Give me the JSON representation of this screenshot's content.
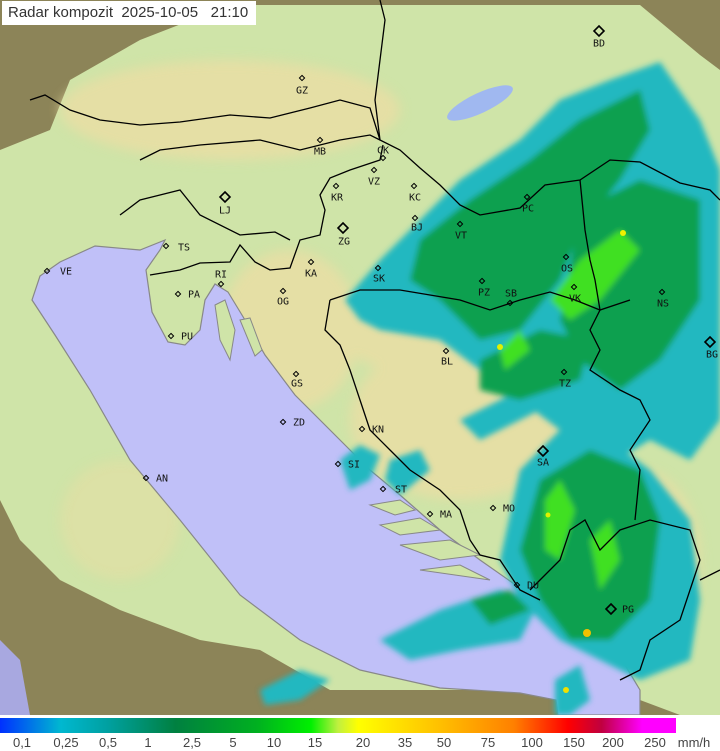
{
  "header": {
    "title": "Radar kompozit",
    "date": "2025-10-05",
    "time": "21:10"
  },
  "colors": {
    "sea": "#c0c0f8",
    "outside_coverage": "#8c8458",
    "lowland": "#cfe4a8",
    "highland": "#e9dea4",
    "rain_light": "#20b8c0",
    "rain_medium": "#10a050",
    "rain_heavy": "#40e020",
    "border": "#000000"
  },
  "cities": [
    {
      "code": "BD",
      "major": true
    },
    {
      "code": "GZ"
    },
    {
      "code": "MB"
    },
    {
      "code": "CK"
    },
    {
      "code": "VZ"
    },
    {
      "code": "KR"
    },
    {
      "code": "KC"
    },
    {
      "code": "LJ",
      "major": true
    },
    {
      "code": "ZG",
      "major": true
    },
    {
      "code": "BJ"
    },
    {
      "code": "VT"
    },
    {
      "code": "PC"
    },
    {
      "code": "TS"
    },
    {
      "code": "VE"
    },
    {
      "code": "RI"
    },
    {
      "code": "KA"
    },
    {
      "code": "SK"
    },
    {
      "code": "OS"
    },
    {
      "code": "PA"
    },
    {
      "code": "OG"
    },
    {
      "code": "PZ"
    },
    {
      "code": "SB"
    },
    {
      "code": "VK"
    },
    {
      "code": "NS"
    },
    {
      "code": "PU"
    },
    {
      "code": "BL"
    },
    {
      "code": "BG",
      "major": true
    },
    {
      "code": "GS"
    },
    {
      "code": "TZ"
    },
    {
      "code": "ZD"
    },
    {
      "code": "KN"
    },
    {
      "code": "SA",
      "major": true
    },
    {
      "code": "SI"
    },
    {
      "code": "ST"
    },
    {
      "code": "AN"
    },
    {
      "code": "MA"
    },
    {
      "code": "MO"
    },
    {
      "code": "DU"
    },
    {
      "code": "PG",
      "major": true
    }
  ],
  "legend": {
    "values": [
      "0,1",
      "0,25",
      "0,5",
      "1",
      "2,5",
      "5",
      "10",
      "15",
      "20",
      "35",
      "50",
      "75",
      "100",
      "150",
      "200",
      "250"
    ],
    "unit": "mm/h"
  }
}
